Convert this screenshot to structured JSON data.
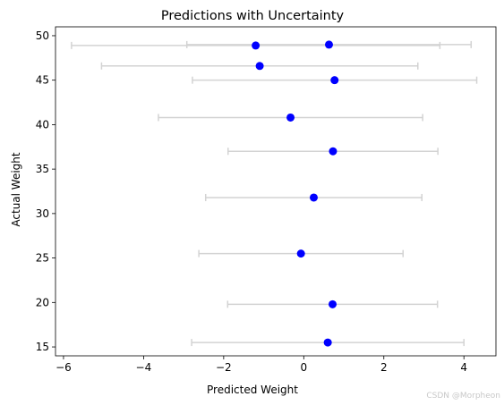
{
  "chart_data": {
    "type": "scatter",
    "title": "Predictions with Uncertainty",
    "xlabel": "Predicted Weight",
    "ylabel": "Actual Weight",
    "xlim": [
      -6.2,
      4.8
    ],
    "ylim": [
      14,
      51
    ],
    "xticks": [
      -6,
      -4,
      -2,
      0,
      2,
      4
    ],
    "xtick_labels": [
      "−6",
      "−4",
      "−2",
      "0",
      "2",
      "4"
    ],
    "yticks": [
      15,
      20,
      25,
      30,
      35,
      40,
      45,
      50
    ],
    "ytick_labels": [
      "15",
      "20",
      "25",
      "30",
      "35",
      "40",
      "45",
      "50"
    ],
    "grid": false,
    "marker_color": "#0000ff",
    "errorbar_color": "#d3d3d3",
    "points": [
      {
        "x": 0.6,
        "y": 15.5,
        "xerr": 3.4
      },
      {
        "x": 0.72,
        "y": 19.8,
        "xerr": 2.62
      },
      {
        "x": -0.07,
        "y": 25.5,
        "xerr": 2.55
      },
      {
        "x": 0.25,
        "y": 31.8,
        "xerr": 2.7
      },
      {
        "x": 0.73,
        "y": 37.0,
        "xerr": 2.62
      },
      {
        "x": -0.33,
        "y": 40.8,
        "xerr": 3.3
      },
      {
        "x": 0.77,
        "y": 45.0,
        "xerr": 3.55
      },
      {
        "x": -1.1,
        "y": 46.6,
        "xerr": 3.95
      },
      {
        "x": 0.63,
        "y": 49.0,
        "xerr": 3.55
      },
      {
        "x": -1.2,
        "y": 48.9,
        "xerr": 4.6
      }
    ]
  },
  "watermark": "CSDN @Morpheon"
}
